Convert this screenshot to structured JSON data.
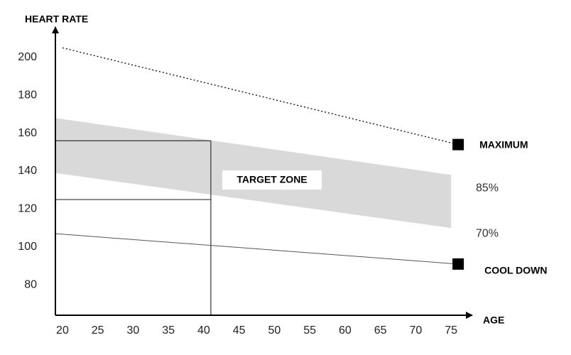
{
  "chart_data": {
    "type": "line",
    "y_label": "HEART RATE",
    "x_label": "AGE",
    "xlim": [
      19,
      78
    ],
    "ylim": [
      64,
      216
    ],
    "xticks": [
      20,
      25,
      30,
      35,
      40,
      45,
      50,
      55,
      60,
      65,
      70,
      75
    ],
    "yticks": [
      80,
      100,
      120,
      140,
      160,
      180,
      200
    ],
    "series": [
      {
        "name": "MAXIMUM",
        "color": "#000000",
        "style": "dotted",
        "marker": "square",
        "x": [
          20,
          76
        ],
        "values": [
          205,
          154
        ]
      },
      {
        "name": "COOL DOWN",
        "color": "#555555",
        "style": "solid",
        "marker": "square",
        "x": [
          19,
          76
        ],
        "values": [
          107,
          91
        ]
      }
    ],
    "band": {
      "name": "TARGET ZONE",
      "color": "#d9d9d9",
      "x": [
        19,
        75
      ],
      "upper": [
        168,
        138
      ],
      "lower": [
        139,
        110
      ],
      "upper_label": "85%",
      "lower_label": "70%"
    },
    "reference": {
      "x": 41,
      "y": [
        156,
        125
      ]
    }
  }
}
